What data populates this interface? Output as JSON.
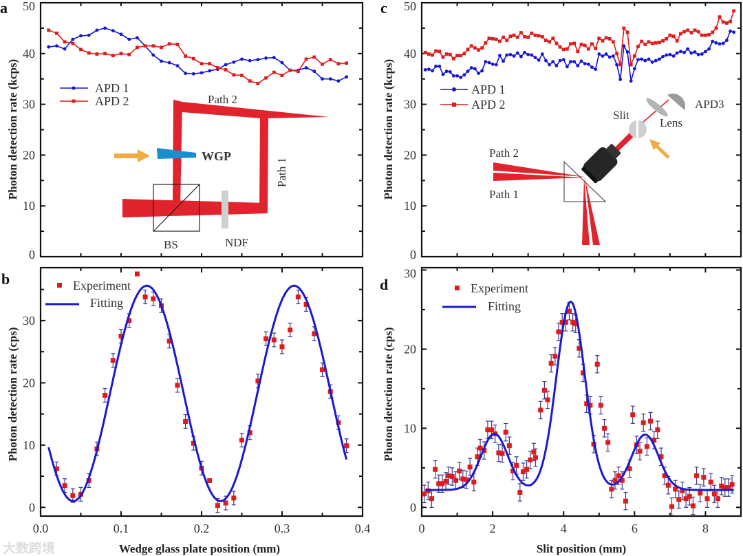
{
  "colors": {
    "apd1": "#1515d8",
    "apd2": "#e01b1b",
    "fit": "#1a1ad0",
    "experiment": "#e01b1b",
    "errorbar": "#3a3a90",
    "beam": "#e0232c",
    "wgp": "#1a8fd0",
    "arrow": "#f2ac45",
    "ndf": "#d0d0d0"
  },
  "watermark": "大数跨境",
  "chart_data": [
    {
      "panel": "a",
      "type": "line",
      "ylabel": "Photon detection rate  (kcps)",
      "xlabel": "",
      "xlim": [
        0,
        0.4
      ],
      "ylim": [
        0,
        50
      ],
      "xtick_step": 0.05,
      "ytick_labels": [
        "0",
        "10",
        "20",
        "30",
        "40",
        "50"
      ],
      "ytick_values": [
        0,
        10,
        20,
        30,
        40,
        50
      ],
      "ytick_minor_step": 5,
      "legend": [
        "APD 1",
        "APD 2"
      ],
      "legend_position": "middle-left",
      "x": [
        0.01,
        0.02,
        0.03,
        0.04,
        0.05,
        0.06,
        0.07,
        0.08,
        0.09,
        0.1,
        0.11,
        0.12,
        0.13,
        0.14,
        0.15,
        0.16,
        0.17,
        0.18,
        0.19,
        0.2,
        0.21,
        0.22,
        0.23,
        0.24,
        0.25,
        0.26,
        0.27,
        0.28,
        0.29,
        0.3,
        0.31,
        0.32,
        0.33,
        0.34,
        0.35,
        0.36,
        0.37,
        0.38
      ],
      "series": [
        {
          "name": "APD 1",
          "marker": "circle",
          "values": [
            41.3,
            41.5,
            40.9,
            42.8,
            43.5,
            43.6,
            44.6,
            45.0,
            44.5,
            43.8,
            42.8,
            43.1,
            41.5,
            39.7,
            38.5,
            38.2,
            37.6,
            36.1,
            36.0,
            36.2,
            36.6,
            36.9,
            37.8,
            38.3,
            38.9,
            38.6,
            38.8,
            39.1,
            39.2,
            38.2,
            36.7,
            36.7,
            37.2,
            36.5,
            35.0,
            35.0,
            34.6,
            35.4
          ]
        },
        {
          "name": "APD 2",
          "marker": "square",
          "values": [
            44.6,
            44.0,
            42.3,
            42.0,
            40.8,
            40.1,
            39.9,
            40.0,
            39.6,
            40.0,
            39.8,
            41.2,
            41.5,
            41.5,
            41.2,
            41.9,
            41.8,
            39.5,
            39.0,
            38.0,
            38.0,
            37.2,
            36.8,
            35.8,
            35.7,
            34.6,
            34.1,
            35.2,
            36.3,
            35.7,
            36.7,
            36.5,
            38.9,
            39.3,
            37.9,
            38.8,
            38.0,
            38.1
          ]
        }
      ]
    },
    {
      "panel": "b",
      "type": "scatter",
      "ylabel": "Photon detection rate  (cps)",
      "xlabel": "Wedge glass plate position (mm)",
      "xlim": [
        0,
        0.4
      ],
      "ylim": [
        -1.4,
        38.5
      ],
      "xtick_values": [
        0,
        0.1,
        0.2,
        0.3,
        0.4
      ],
      "xtick_labels": [
        "0.0",
        "0.1",
        "0.2",
        "0.3",
        "0.4"
      ],
      "xtick_minor_step": 0.05,
      "ytick_values": [
        0,
        10,
        20,
        30
      ],
      "ytick_labels": [
        "0",
        "10",
        "20",
        "30"
      ],
      "ytick_minor_step": 5,
      "legend": [
        "Experiment",
        "Fitting"
      ],
      "legend_position": "top-left",
      "x": [
        0.02,
        0.03,
        0.04,
        0.05,
        0.06,
        0.07,
        0.08,
        0.09,
        0.1,
        0.11,
        0.12,
        0.13,
        0.14,
        0.15,
        0.16,
        0.17,
        0.18,
        0.19,
        0.2,
        0.21,
        0.22,
        0.23,
        0.24,
        0.25,
        0.26,
        0.27,
        0.28,
        0.29,
        0.3,
        0.31,
        0.32,
        0.33,
        0.34,
        0.35,
        0.36,
        0.37,
        0.38
      ],
      "series": [
        {
          "name": "Experiment",
          "values": [
            6.2,
            3.5,
            1.9,
            2.1,
            4.3,
            9.4,
            18.0,
            23.6,
            27.5,
            30.0,
            37.5,
            33.8,
            33.5,
            32.4,
            26.7,
            19.6,
            13.8,
            10.3,
            6.3,
            4.3,
            0.3,
            0.7,
            1.5,
            10.8,
            12.0,
            20.3,
            27.1,
            26.9,
            25.8,
            28.5,
            33.8,
            32.6,
            27.9,
            22.1,
            18.6,
            13.6,
            9.9
          ],
          "yerr": [
            1.1,
            1.1,
            1.1,
            1.1,
            1.1,
            1.1,
            1.1,
            1.1,
            1.1,
            1.1,
            0,
            1.1,
            1.1,
            1.1,
            1.1,
            1.1,
            1.1,
            1.1,
            1.1,
            0,
            1.1,
            1.1,
            1.1,
            1.1,
            1.1,
            1.1,
            1.1,
            1.1,
            1.1,
            1.1,
            1.1,
            1.1,
            1.1,
            1.1,
            1.1,
            1.1,
            1.1
          ]
        }
      ],
      "fit": {
        "name": "Fitting",
        "model": "offset + amplitude*cos(2*pi*(x - phase_x)/period)",
        "offset": 18.3,
        "amplitude": 17.3,
        "period": 0.183,
        "phase_x": 0.132,
        "x_range": [
          0.01,
          0.38
        ]
      }
    },
    {
      "panel": "c",
      "type": "line",
      "ylabel": "Photon detection rate  (kcps)",
      "xlabel": "",
      "xlim": [
        0,
        9
      ],
      "ylim": [
        0,
        50
      ],
      "xtick_step": 1,
      "ytick_values": [
        0,
        10,
        20,
        30,
        40,
        50
      ],
      "ytick_labels": [
        "0",
        "10",
        "20",
        "30",
        "40",
        "50"
      ],
      "ytick_minor_step": 5,
      "legend": [
        "APD 1",
        "APD 2"
      ],
      "legend_position": "middle-left",
      "x_start": 0.1,
      "x_step": 0.1,
      "series": [
        {
          "name": "APD 1",
          "marker": "circle",
          "values": [
            36.8,
            36.9,
            36.6,
            37.5,
            37.5,
            35.9,
            36.5,
            36.4,
            35.6,
            35.6,
            35.3,
            35.8,
            36.5,
            37.2,
            37.0,
            36.1,
            36.6,
            38.4,
            38.2,
            37.9,
            37.8,
            39.6,
            38.5,
            39.7,
            39.8,
            39.5,
            40.1,
            39.4,
            40.2,
            39.8,
            39.7,
            39.2,
            38.7,
            39.9,
            38.6,
            37.8,
            38.4,
            37.6,
            38.6,
            38.8,
            37.4,
            38.4,
            38.4,
            37.6,
            38.5,
            38.0,
            37.9,
            37.3,
            36.9,
            39.9,
            39.5,
            39.9,
            39.3,
            39.5,
            37.8,
            34.9,
            41.5,
            40.3,
            34.6,
            37.0,
            38.8,
            38.9,
            38.6,
            38.9,
            38.3,
            38.6,
            38.9,
            39.4,
            39.7,
            39.8,
            39.5,
            40.1,
            40.4,
            40.2,
            40.9,
            40.1,
            40.3,
            39.8,
            39.9,
            40.4,
            40.9,
            42.4,
            42.1,
            41.9,
            42.0,
            42.6,
            44.4,
            44.2
          ]
        },
        {
          "name": "APD 2",
          "marker": "square",
          "values": [
            40.2,
            39.9,
            39.7,
            40.5,
            40.4,
            39.3,
            39.9,
            39.8,
            39.0,
            39.6,
            39.6,
            40.0,
            40.8,
            41.5,
            41.1,
            40.7,
            41.1,
            42.1,
            43.0,
            42.9,
            42.8,
            42.4,
            43.2,
            42.6,
            43.4,
            43.6,
            43.2,
            44.1,
            43.3,
            43.2,
            44.0,
            43.6,
            43.5,
            43.3,
            42.6,
            42.3,
            43.0,
            42.0,
            41.3,
            40.8,
            40.9,
            41.9,
            42.0,
            40.4,
            41.8,
            41.6,
            40.9,
            41.9,
            41.0,
            43.0,
            42.5,
            43.1,
            42.9,
            42.3,
            40.0,
            37.8,
            45.0,
            44.2,
            37.8,
            39.5,
            41.4,
            42.4,
            41.8,
            42.3,
            42.0,
            42.1,
            42.2,
            42.5,
            42.9,
            43.6,
            43.4,
            42.5,
            43.9,
            44.3,
            44.6,
            44.1,
            44.6,
            44.3,
            43.6,
            43.6,
            43.7,
            44.2,
            45.0,
            47.2,
            46.2,
            46.0,
            46.3,
            48.4
          ]
        }
      ]
    },
    {
      "panel": "d",
      "type": "scatter",
      "ylabel": "Photon detection rate  (cps)",
      "xlabel": "Slit position (mm)",
      "xlim": [
        0,
        9
      ],
      "ylim": [
        -1.1,
        30.3
      ],
      "xtick_values": [
        0,
        2,
        4,
        6,
        8
      ],
      "xtick_labels": [
        "0",
        "2",
        "4",
        "6",
        "8"
      ],
      "xtick_minor_step": 1,
      "ytick_values": [
        0,
        10,
        20,
        30
      ],
      "ytick_labels": [
        "0",
        "10",
        "20",
        "30"
      ],
      "ytick_minor_step": 5,
      "legend": [
        "Experiment",
        "Fitting"
      ],
      "legend_position": "top-left",
      "x": [
        0.07,
        0.18,
        0.28,
        0.38,
        0.48,
        0.58,
        0.68,
        0.76,
        0.86,
        0.96,
        1.06,
        1.16,
        1.26,
        1.36,
        1.47,
        1.57,
        1.65,
        1.76,
        1.86,
        1.97,
        2.07,
        2.17,
        2.27,
        2.37,
        2.47,
        2.57,
        2.67,
        2.77,
        2.86,
        2.96,
        3.06,
        3.16,
        3.21,
        3.35,
        3.46,
        3.55,
        3.65,
        3.76,
        3.86,
        3.96,
        4.06,
        4.16,
        4.26,
        4.34,
        4.44,
        4.55,
        4.65,
        4.75,
        4.85,
        4.95,
        5.05,
        5.15,
        5.25,
        5.35,
        5.45,
        5.55,
        5.65,
        5.75,
        5.86,
        5.95,
        6.06,
        6.15,
        6.25,
        6.35,
        6.45,
        6.55,
        6.65,
        6.75,
        6.85,
        6.95,
        7.05,
        7.15,
        7.25,
        7.35,
        7.45,
        7.55,
        7.65,
        7.75,
        7.85,
        7.95,
        8.05,
        8.15,
        8.25,
        8.35,
        8.45,
        8.55,
        8.65,
        8.75
      ],
      "series": [
        {
          "name": "Experiment",
          "values": [
            1.7,
            2.1,
            1.1,
            4.8,
            3.0,
            3.0,
            3.3,
            4.0,
            3.9,
            3.4,
            4.6,
            3.6,
            3.5,
            5.1,
            3.2,
            6.4,
            7.5,
            7.2,
            9.8,
            9.8,
            9.3,
            6.9,
            6.8,
            9.5,
            7.8,
            4.6,
            5.3,
            1.9,
            4.5,
            4.8,
            6.0,
            7.0,
            6.3,
            12.3,
            14.8,
            13.6,
            18.2,
            19.1,
            22.2,
            23.4,
            23.4,
            24.8,
            23.4,
            23.2,
            20.1,
            17.0,
            13.1,
            12.9,
            8.0,
            18.1,
            12.9,
            10.0,
            8.2,
            2.3,
            3.4,
            4.0,
            3.4,
            0.8,
            4.9,
            11.7,
            7.9,
            7.1,
            10.7,
            7.7,
            10.9,
            8.5,
            9.8,
            6.4,
            4.0,
            2.8,
            0.1,
            2.3,
            1.0,
            2.1,
            1.1,
            1.4,
            0.2,
            4.0,
            1.8,
            3.8,
            1.1,
            3.2,
            1.7,
            1.1,
            2.7,
            2.5,
            2.5,
            2.9
          ],
          "yerr_uniform": 1.1
        }
      ],
      "fit": {
        "name": "Fitting",
        "model": "baseline + sum of gaussian peaks",
        "baseline": 2.2,
        "peaks": [
          {
            "center": 2.05,
            "height": 7.1,
            "sigma": 0.38
          },
          {
            "center": 4.2,
            "height": 23.8,
            "sigma": 0.4
          },
          {
            "center": 6.3,
            "height": 7.0,
            "sigma": 0.38
          }
        ],
        "x_range": [
          0.1,
          8.8
        ]
      }
    }
  ],
  "panels": {
    "a": {
      "letter": "a",
      "legend": [
        "APD 1",
        "APD 2"
      ],
      "diagram": {
        "path2": "Path 2",
        "path1": "Path 1",
        "wgp": "WGP",
        "bs": "BS",
        "ndf": "NDF"
      }
    },
    "b": {
      "letter": "b"
    },
    "c": {
      "letter": "c",
      "legend": [
        "APD 1",
        "APD 2"
      ],
      "diagram": {
        "path2": "Path 2",
        "path1": "Path 1",
        "slit": "Slit",
        "lens": "Lens",
        "apd3": "APD3"
      }
    },
    "d": {
      "letter": "d"
    }
  }
}
